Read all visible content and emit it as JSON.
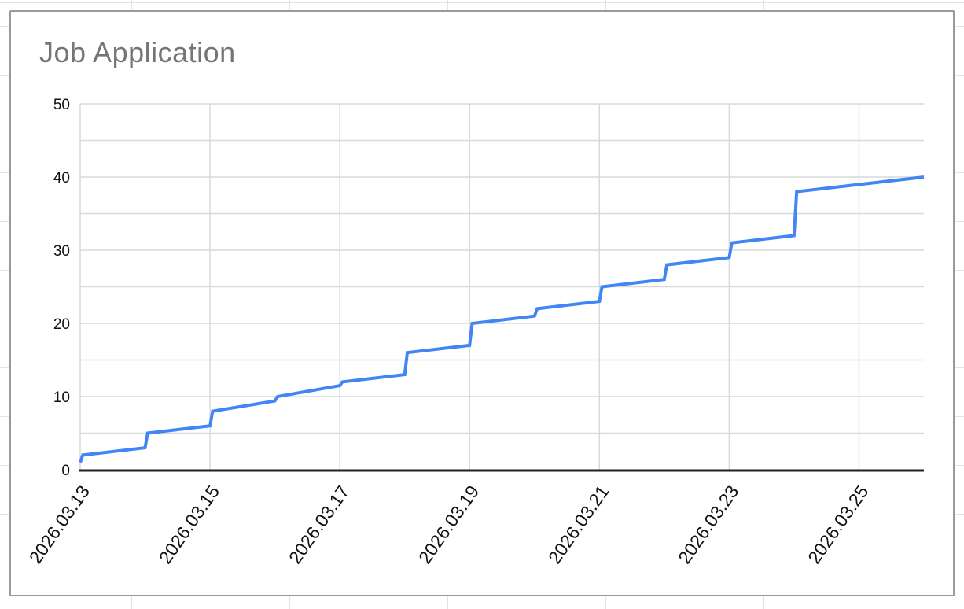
{
  "chart_data": {
    "type": "line",
    "title": "Job Application",
    "x_axis": {
      "tick_labels": [
        "2026.03.13",
        "2026.03.15",
        "2026.03.17",
        "2026.03.19",
        "2026.03.21",
        "2026.03.23",
        "2026.03.25"
      ],
      "tick_days": [
        0,
        2,
        4,
        6,
        8,
        10,
        12
      ],
      "range_days": [
        0,
        13
      ],
      "start_date": "2026.03.13",
      "end_date": "2026.03.26",
      "label_rotation_deg": -55
    },
    "y_axis": {
      "tick_labels": [
        "0",
        "10",
        "20",
        "30",
        "40",
        "50"
      ],
      "tick_values": [
        0,
        10,
        20,
        30,
        40,
        50
      ],
      "minor_grid_step": 5,
      "range": [
        0,
        50
      ]
    },
    "grid": {
      "show": true,
      "legend": "none"
    },
    "series": [
      {
        "name": "Job Application (cumulative)",
        "color": "#4285f4",
        "points_day_value": [
          [
            0,
            1
          ],
          [
            0.04,
            2
          ],
          [
            1,
            3
          ],
          [
            1.04,
            5
          ],
          [
            2,
            6
          ],
          [
            2.04,
            8
          ],
          [
            3,
            9.4
          ],
          [
            3.04,
            10
          ],
          [
            4,
            11.5
          ],
          [
            4.04,
            12
          ],
          [
            5,
            13
          ],
          [
            5.04,
            16
          ],
          [
            6,
            17
          ],
          [
            6.04,
            20
          ],
          [
            7,
            21
          ],
          [
            7.04,
            22
          ],
          [
            8,
            23
          ],
          [
            8.04,
            25
          ],
          [
            9,
            26
          ],
          [
            9.04,
            28
          ],
          [
            10,
            29
          ],
          [
            10.04,
            31
          ],
          [
            11,
            32
          ],
          [
            11.04,
            38
          ],
          [
            13,
            40
          ]
        ],
        "daily_jumps": [
          {
            "date": "2026.03.13",
            "from": 1,
            "to": 2
          },
          {
            "date": "2026.03.14",
            "from": 3,
            "to": 5
          },
          {
            "date": "2026.03.15",
            "from": 6,
            "to": 8
          },
          {
            "date": "2026.03.16",
            "from": 9.4,
            "to": 10
          },
          {
            "date": "2026.03.17",
            "from": 11.5,
            "to": 12
          },
          {
            "date": "2026.03.18",
            "from": 13,
            "to": 16
          },
          {
            "date": "2026.03.19",
            "from": 17,
            "to": 20
          },
          {
            "date": "2026.03.20",
            "from": 21,
            "to": 22
          },
          {
            "date": "2026.03.21",
            "from": 23,
            "to": 25
          },
          {
            "date": "2026.03.22",
            "from": 26,
            "to": 28
          },
          {
            "date": "2026.03.23",
            "from": 29,
            "to": 31
          },
          {
            "date": "2026.03.24",
            "from": 32,
            "to": 38
          },
          {
            "date": "2026.03.26",
            "final_value": 40
          }
        ]
      }
    ]
  },
  "colors": {
    "title": "#757575",
    "axis_labels": "#111111",
    "gridline": "#d9d9d9",
    "axis_line": "#212121",
    "card_border": "#9a9a9a",
    "sheet_gridline": "#e3e3e3",
    "series": "#4285f4",
    "background": "#ffffff"
  }
}
